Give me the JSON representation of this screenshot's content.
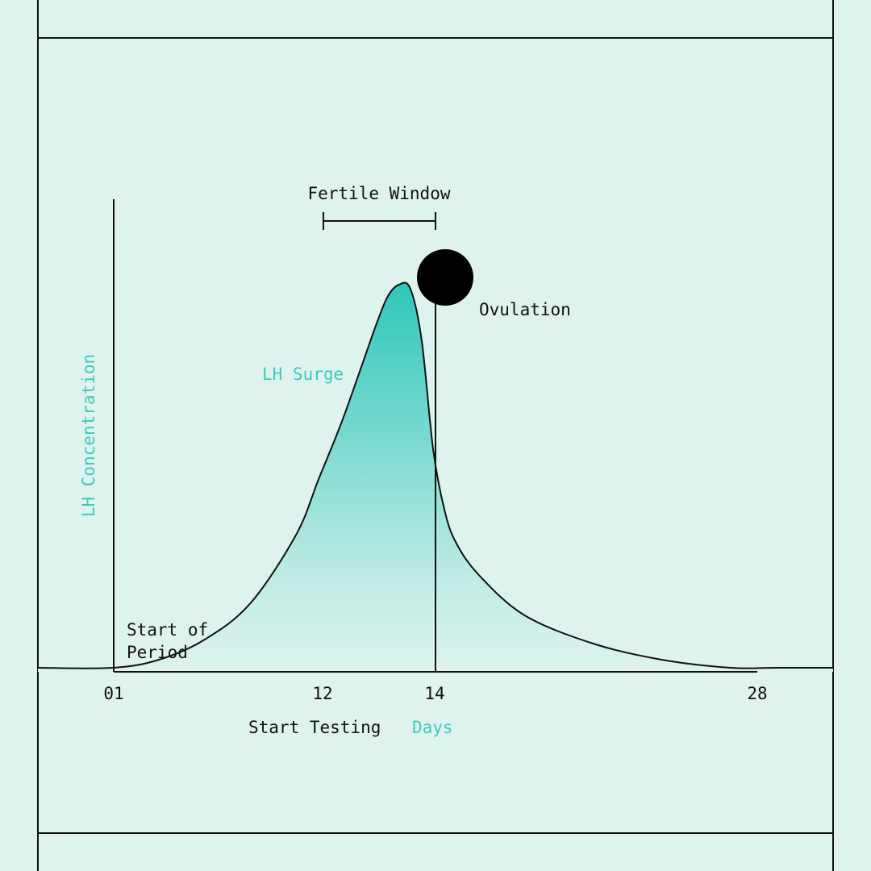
{
  "chart_data": {
    "type": "area",
    "xlabel": "Days",
    "ylabel": "LH Concentration",
    "x_ticks": [
      "01",
      "12",
      "14",
      "28"
    ],
    "x": [
      1,
      3,
      5,
      7,
      9,
      10,
      11,
      12,
      12.5,
      13,
      13.5,
      14,
      14.5,
      15,
      15.5,
      16,
      17,
      19,
      22,
      25,
      28,
      30
    ],
    "y": [
      1,
      3,
      8,
      17,
      34,
      48,
      62,
      78,
      86,
      93,
      96,
      95,
      82,
      55,
      40,
      32,
      24,
      14,
      7,
      3,
      1,
      1
    ],
    "xlim": [
      -2.3,
      32.5
    ],
    "ylim": [
      0,
      100
    ],
    "series": [
      {
        "name": "LH Surge",
        "color": "#36c9bd"
      }
    ],
    "annotations": {
      "start_of_period": {
        "line1": "Start of",
        "line2": "Period"
      },
      "start_testing": "Start Testing",
      "fertile_window": {
        "label": "Fertile Window",
        "from": 12,
        "to": 14
      },
      "ovulation": {
        "label": "Ovulation",
        "day": 14
      }
    },
    "colors": {
      "background": "#dff3ee",
      "accent": "#3ec9bd",
      "fill_top": "#2fc6b9",
      "fill_bottom": "#dff3ee",
      "ink": "#111111"
    }
  }
}
